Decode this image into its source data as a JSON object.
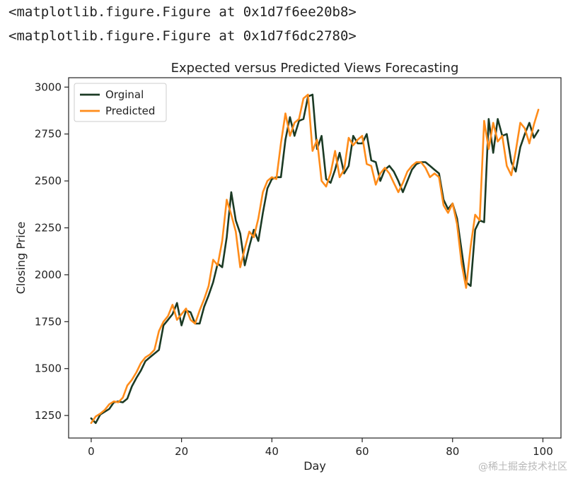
{
  "cell_output": {
    "line1": "<matplotlib.figure.Figure at 0x1d7f6ee20b8>",
    "line2": "<matplotlib.figure.Figure at 0x1d7f6dc2780>"
  },
  "watermark": "@稀土掘金技术社区",
  "chart_data": {
    "type": "line",
    "title": "Expected versus Predicted Views Forecasting",
    "xlabel": "Day",
    "ylabel": "Closing Price",
    "xlim": [
      -5,
      104
    ],
    "ylim": [
      1130,
      3050
    ],
    "xticks": [
      0,
      20,
      40,
      60,
      80,
      100
    ],
    "yticks": [
      1250,
      1500,
      1750,
      2000,
      2250,
      2500,
      2750,
      3000
    ],
    "grid": false,
    "legend_position": "top-left",
    "series": [
      {
        "name": "Orginal",
        "color": "#1b3a24",
        "x": [
          0,
          1,
          2,
          3,
          4,
          5,
          6,
          7,
          8,
          9,
          10,
          11,
          12,
          13,
          14,
          15,
          16,
          17,
          18,
          19,
          20,
          21,
          22,
          23,
          24,
          25,
          26,
          27,
          28,
          29,
          30,
          31,
          32,
          33,
          34,
          35,
          36,
          37,
          38,
          39,
          40,
          41,
          42,
          43,
          44,
          45,
          46,
          47,
          48,
          49,
          50,
          51,
          52,
          53,
          54,
          55,
          56,
          57,
          58,
          59,
          60,
          61,
          62,
          63,
          64,
          65,
          66,
          67,
          68,
          69,
          70,
          71,
          72,
          73,
          74,
          75,
          76,
          77,
          78,
          79,
          80,
          81,
          82,
          83,
          84,
          85,
          86,
          87,
          88,
          89,
          90,
          91,
          92,
          93,
          94,
          95,
          96,
          97,
          98,
          99
        ],
        "values": [
          1235,
          1210,
          1255,
          1270,
          1285,
          1320,
          1325,
          1320,
          1340,
          1405,
          1450,
          1490,
          1540,
          1560,
          1580,
          1600,
          1730,
          1760,
          1790,
          1850,
          1730,
          1810,
          1800,
          1740,
          1740,
          1830,
          1890,
          1960,
          2060,
          2040,
          2200,
          2440,
          2290,
          2220,
          2050,
          2150,
          2240,
          2180,
          2330,
          2460,
          2510,
          2520,
          2520,
          2720,
          2840,
          2740,
          2820,
          2830,
          2950,
          2960,
          2670,
          2740,
          2510,
          2490,
          2560,
          2650,
          2540,
          2580,
          2740,
          2700,
          2700,
          2750,
          2610,
          2600,
          2500,
          2560,
          2580,
          2550,
          2500,
          2440,
          2500,
          2560,
          2590,
          2600,
          2600,
          2580,
          2560,
          2540,
          2400,
          2350,
          2380,
          2300,
          2130,
          1960,
          1940,
          2240,
          2290,
          2280,
          2830,
          2650,
          2830,
          2740,
          2750,
          2600,
          2550,
          2680,
          2750,
          2810,
          2730,
          2770
        ]
      },
      {
        "name": "Predicted",
        "color": "#ff8c1a",
        "x": [
          0,
          1,
          2,
          3,
          4,
          5,
          6,
          7,
          8,
          9,
          10,
          11,
          12,
          13,
          14,
          15,
          16,
          17,
          18,
          19,
          20,
          21,
          22,
          23,
          24,
          25,
          26,
          27,
          28,
          29,
          30,
          31,
          32,
          33,
          34,
          35,
          36,
          37,
          38,
          39,
          40,
          41,
          42,
          43,
          44,
          45,
          46,
          47,
          48,
          49,
          50,
          51,
          52,
          53,
          54,
          55,
          56,
          57,
          58,
          59,
          60,
          61,
          62,
          63,
          64,
          65,
          66,
          67,
          68,
          69,
          70,
          71,
          72,
          73,
          74,
          75,
          76,
          77,
          78,
          79,
          80,
          81,
          82,
          83,
          84,
          85,
          86,
          87,
          88,
          89,
          90,
          91,
          92,
          93,
          94,
          95,
          96,
          97,
          98,
          99
        ],
        "values": [
          1210,
          1245,
          1260,
          1280,
          1310,
          1325,
          1320,
          1345,
          1410,
          1440,
          1480,
          1530,
          1560,
          1575,
          1600,
          1700,
          1750,
          1780,
          1840,
          1760,
          1790,
          1820,
          1760,
          1740,
          1810,
          1870,
          1940,
          2080,
          2050,
          2180,
          2400,
          2320,
          2230,
          2040,
          2140,
          2230,
          2200,
          2300,
          2440,
          2500,
          2520,
          2510,
          2700,
          2860,
          2740,
          2810,
          2830,
          2940,
          2960,
          2660,
          2720,
          2500,
          2470,
          2540,
          2660,
          2520,
          2560,
          2730,
          2690,
          2720,
          2740,
          2590,
          2580,
          2480,
          2540,
          2570,
          2540,
          2490,
          2440,
          2490,
          2550,
          2580,
          2600,
          2600,
          2570,
          2520,
          2540,
          2520,
          2370,
          2330,
          2380,
          2270,
          2060,
          1930,
          2150,
          2320,
          2290,
          2820,
          2670,
          2810,
          2710,
          2740,
          2580,
          2530,
          2660,
          2810,
          2780,
          2700,
          2800,
          2880
        ]
      }
    ]
  }
}
